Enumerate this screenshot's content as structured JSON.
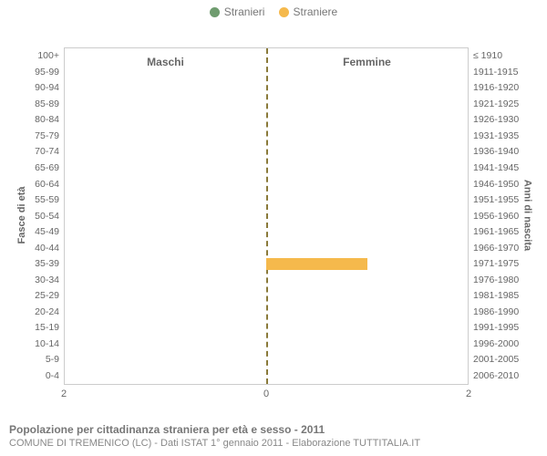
{
  "legend": {
    "male": {
      "label": "Stranieri",
      "color": "#6f9c6f"
    },
    "female": {
      "label": "Straniere",
      "color": "#f5b94c"
    }
  },
  "chart": {
    "type": "population-pyramid",
    "section_labels": {
      "male": "Maschi",
      "female": "Femmine"
    },
    "y_axis_left_label": "Fasce di età",
    "y_axis_right_label": "Anni di nascita",
    "x_max": 2,
    "x_ticks": [
      2,
      0,
      2
    ],
    "plot_border_color": "#cccccc",
    "center_line_color": "#8a7a3a",
    "background_color": "#ffffff",
    "ages": [
      {
        "age": "100+",
        "birth": "≤ 1910",
        "male": 0,
        "female": 0
      },
      {
        "age": "95-99",
        "birth": "1911-1915",
        "male": 0,
        "female": 0
      },
      {
        "age": "90-94",
        "birth": "1916-1920",
        "male": 0,
        "female": 0
      },
      {
        "age": "85-89",
        "birth": "1921-1925",
        "male": 0,
        "female": 0
      },
      {
        "age": "80-84",
        "birth": "1926-1930",
        "male": 0,
        "female": 0
      },
      {
        "age": "75-79",
        "birth": "1931-1935",
        "male": 0,
        "female": 0
      },
      {
        "age": "70-74",
        "birth": "1936-1940",
        "male": 0,
        "female": 0
      },
      {
        "age": "65-69",
        "birth": "1941-1945",
        "male": 0,
        "female": 0
      },
      {
        "age": "60-64",
        "birth": "1946-1950",
        "male": 0,
        "female": 0
      },
      {
        "age": "55-59",
        "birth": "1951-1955",
        "male": 0,
        "female": 0
      },
      {
        "age": "50-54",
        "birth": "1956-1960",
        "male": 0,
        "female": 0
      },
      {
        "age": "45-49",
        "birth": "1961-1965",
        "male": 0,
        "female": 0
      },
      {
        "age": "40-44",
        "birth": "1966-1970",
        "male": 0,
        "female": 0
      },
      {
        "age": "35-39",
        "birth": "1971-1975",
        "male": 0,
        "female": 1
      },
      {
        "age": "30-34",
        "birth": "1976-1980",
        "male": 0,
        "female": 0
      },
      {
        "age": "25-29",
        "birth": "1981-1985",
        "male": 0,
        "female": 0
      },
      {
        "age": "20-24",
        "birth": "1986-1990",
        "male": 0,
        "female": 0
      },
      {
        "age": "15-19",
        "birth": "1991-1995",
        "male": 0,
        "female": 0
      },
      {
        "age": "10-14",
        "birth": "1996-2000",
        "male": 0,
        "female": 0
      },
      {
        "age": "5-9",
        "birth": "2001-2005",
        "male": 0,
        "female": 0
      },
      {
        "age": "0-4",
        "birth": "2006-2010",
        "male": 0,
        "female": 0
      }
    ]
  },
  "caption": {
    "title": "Popolazione per cittadinanza straniera per età e sesso - 2011",
    "subtitle": "COMUNE DI TREMENICO (LC) - Dati ISTAT 1° gennaio 2011 - Elaborazione TUTTITALIA.IT"
  }
}
